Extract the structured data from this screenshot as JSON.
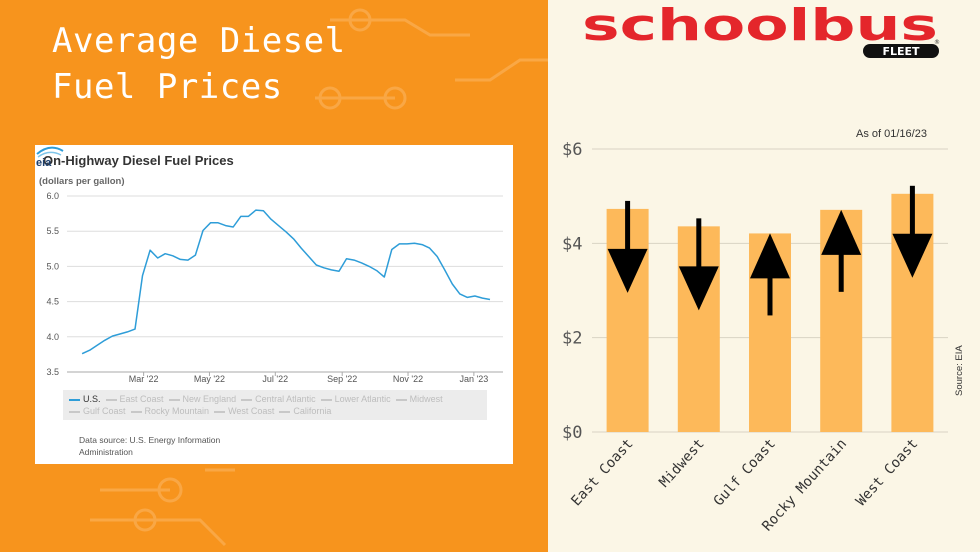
{
  "headline": {
    "line1": "Average Diesel",
    "line2": "Fuel Prices"
  },
  "brand": {
    "name": "schoolbus",
    "sub": "FLEET",
    "registered": "®",
    "color": "#e4262b"
  },
  "colors": {
    "background_left": "#f7941d",
    "background_right": "#fbf6e6",
    "line": "#2e9dd8",
    "bar": "#fdb95a"
  },
  "chart_data": [
    {
      "type": "line",
      "title": "On-Highway Diesel Fuel Prices",
      "subtitle": "(dollars per gallon)",
      "x_ticks": [
        "Mar '22",
        "May '22",
        "Jul '22",
        "Sep '22",
        "Nov '22",
        "Jan '23"
      ],
      "ylim": [
        3.5,
        6.0
      ],
      "y_ticks": [
        3.5,
        4.0,
        4.5,
        5.0,
        5.5,
        6.0
      ],
      "grid": true,
      "legend": [
        "U.S.",
        "East Coast",
        "New England",
        "Central Atlantic",
        "Lower Atlantic",
        "Midwest",
        "Gulf Coast",
        "Rocky Mountain",
        "West Coast",
        "California"
      ],
      "legend_active": "U.S.",
      "legend_position": "bottom",
      "series": [
        {
          "name": "U.S.",
          "x": [
            "2022-01-03",
            "2022-01-10",
            "2022-01-17",
            "2022-01-24",
            "2022-01-31",
            "2022-02-07",
            "2022-02-14",
            "2022-02-21",
            "2022-02-28",
            "2022-03-07",
            "2022-03-14",
            "2022-03-21",
            "2022-03-28",
            "2022-04-04",
            "2022-04-11",
            "2022-04-18",
            "2022-04-25",
            "2022-05-02",
            "2022-05-09",
            "2022-05-16",
            "2022-05-23",
            "2022-05-30",
            "2022-06-06",
            "2022-06-13",
            "2022-06-20",
            "2022-06-27",
            "2022-07-04",
            "2022-07-11",
            "2022-07-18",
            "2022-07-25",
            "2022-08-01",
            "2022-08-08",
            "2022-08-15",
            "2022-08-22",
            "2022-08-29",
            "2022-09-05",
            "2022-09-12",
            "2022-09-19",
            "2022-09-26",
            "2022-10-03",
            "2022-10-10",
            "2022-10-17",
            "2022-10-24",
            "2022-10-31",
            "2022-11-07",
            "2022-11-14",
            "2022-11-21",
            "2022-11-28",
            "2022-12-05",
            "2022-12-12",
            "2022-12-19",
            "2022-12-26",
            "2023-01-02",
            "2023-01-09",
            "2023-01-16"
          ],
          "y": [
            3.76,
            3.81,
            3.88,
            3.95,
            4.01,
            4.04,
            4.07,
            4.11,
            4.87,
            5.23,
            5.12,
            5.18,
            5.15,
            5.1,
            5.09,
            5.16,
            5.51,
            5.62,
            5.62,
            5.58,
            5.56,
            5.71,
            5.71,
            5.8,
            5.79,
            5.67,
            5.58,
            5.49,
            5.39,
            5.26,
            5.14,
            5.02,
            4.98,
            4.95,
            4.93,
            5.11,
            5.09,
            5.05,
            5.0,
            4.94,
            4.85,
            5.24,
            5.32,
            5.32,
            5.33,
            5.31,
            5.26,
            5.14,
            4.95,
            4.75,
            4.61,
            4.56,
            4.58,
            4.55,
            4.53
          ]
        }
      ]
    },
    {
      "type": "bar",
      "note": "As of 01/16/23",
      "source": "Source: EIA",
      "categories": [
        "East Coast",
        "Midwest",
        "Gulf Coast",
        "Rocky Mountain",
        "West Coast"
      ],
      "values": [
        4.73,
        4.36,
        4.21,
        4.71,
        5.05
      ],
      "trend": [
        "down",
        "down",
        "up",
        "up",
        "down"
      ],
      "ylim": [
        0,
        6
      ],
      "y_ticks": [
        "$0",
        "$2",
        "$4",
        "$6"
      ],
      "y_tick_values": [
        0,
        2,
        4,
        6
      ],
      "grid": true
    }
  ]
}
